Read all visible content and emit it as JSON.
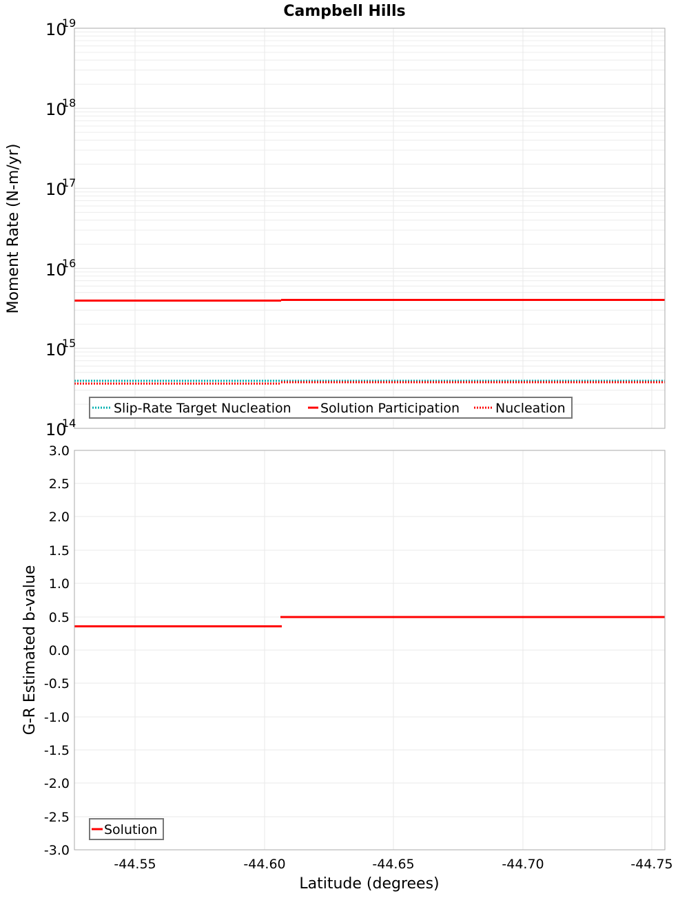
{
  "title": "Campbell Hills",
  "chart_data": [
    {
      "type": "line",
      "title": "Campbell Hills",
      "xlabel": "Latitude (degrees)",
      "ylabel": "Moment Rate (N-m/yr)",
      "yscale": "log",
      "ylim": [
        100000000000000.0,
        1e+19
      ],
      "xlim": [
        -44.527,
        -44.755
      ],
      "yticks": [
        "10^14",
        "10^15",
        "10^16",
        "10^17",
        "10^18",
        "10^19"
      ],
      "xticks": [
        "-44.55",
        "-44.60",
        "-44.65",
        "-44.70",
        "-44.75"
      ],
      "grid": true,
      "legend_position": "lower-left",
      "series": [
        {
          "name": "Slip-Rate Target Nucleation",
          "style": "dotted",
          "color": "#00b0b0",
          "x": [
            -44.527,
            -44.607,
            -44.607,
            -44.687,
            -44.687,
            -44.755
          ],
          "y": [
            370000000000000.0,
            370000000000000.0,
            370000000000000.0,
            370000000000000.0,
            370000000000000.0,
            370000000000000.0
          ]
        },
        {
          "name": "Solution Participation",
          "style": "solid",
          "color": "#ff0000",
          "x": [
            -44.527,
            -44.607,
            -44.607,
            -44.687,
            -44.687,
            -44.755
          ],
          "y": [
            3900000000000000.0,
            3900000000000000.0,
            4000000000000000.0,
            4000000000000000.0,
            4000000000000000.0,
            4000000000000000.0
          ]
        },
        {
          "name": "Nucleation",
          "style": "dotted",
          "color": "#ff0000",
          "x": [
            -44.527,
            -44.607,
            -44.607,
            -44.687,
            -44.687,
            -44.755
          ],
          "y": [
            340000000000000.0,
            340000000000000.0,
            360000000000000.0,
            360000000000000.0,
            360000000000000.0,
            360000000000000.0
          ]
        }
      ]
    },
    {
      "type": "line",
      "title": "",
      "xlabel": "Latitude (degrees)",
      "ylabel": "G-R Estimated b-value",
      "ylim": [
        -3.0,
        3.0
      ],
      "xlim": [
        -44.527,
        -44.755
      ],
      "yticks": [
        "3.0",
        "2.5",
        "2.0",
        "1.5",
        "1.0",
        "0.5",
        "0.0",
        "-0.5",
        "-1.0",
        "-1.5",
        "-2.0",
        "-2.5",
        "-3.0"
      ],
      "xticks": [
        "-44.55",
        "-44.60",
        "-44.65",
        "-44.70",
        "-44.75"
      ],
      "grid": true,
      "legend_position": "lower-left",
      "series": [
        {
          "name": "Solution",
          "style": "solid",
          "color": "#ff0000",
          "x": [
            -44.527,
            -44.607,
            -44.607,
            -44.687,
            -44.687,
            -44.755
          ],
          "y": [
            0.36,
            0.36,
            0.5,
            0.5,
            0.5,
            0.5
          ]
        }
      ]
    }
  ],
  "top": {
    "ylabel": "Moment Rate (N-m/yr)",
    "ticks": [
      {
        "base": "10",
        "exp": "19"
      },
      {
        "base": "10",
        "exp": "18"
      },
      {
        "base": "10",
        "exp": "17"
      },
      {
        "base": "10",
        "exp": "16"
      },
      {
        "base": "10",
        "exp": "15"
      },
      {
        "base": "10",
        "exp": "14"
      }
    ],
    "legend": [
      "Slip-Rate Target Nucleation",
      "Solution Participation",
      "Nucleation"
    ]
  },
  "bottom": {
    "ylabel": "G-R Estimated b-value",
    "xlabel": "Latitude (degrees)",
    "yticks": [
      "3.0",
      "2.5",
      "2.0",
      "1.5",
      "1.0",
      "0.5",
      "0.0",
      "-0.5",
      "-1.0",
      "-1.5",
      "-2.0",
      "-2.5",
      "-3.0"
    ],
    "xticks": [
      "-44.55",
      "-44.60",
      "-44.65",
      "-44.70",
      "-44.75"
    ],
    "legend": [
      "Solution"
    ]
  },
  "colors": {
    "red": "#ff0000",
    "cyan": "#00b0b0",
    "grid": "#e8e8e8",
    "frame": "#aaaaaa"
  }
}
